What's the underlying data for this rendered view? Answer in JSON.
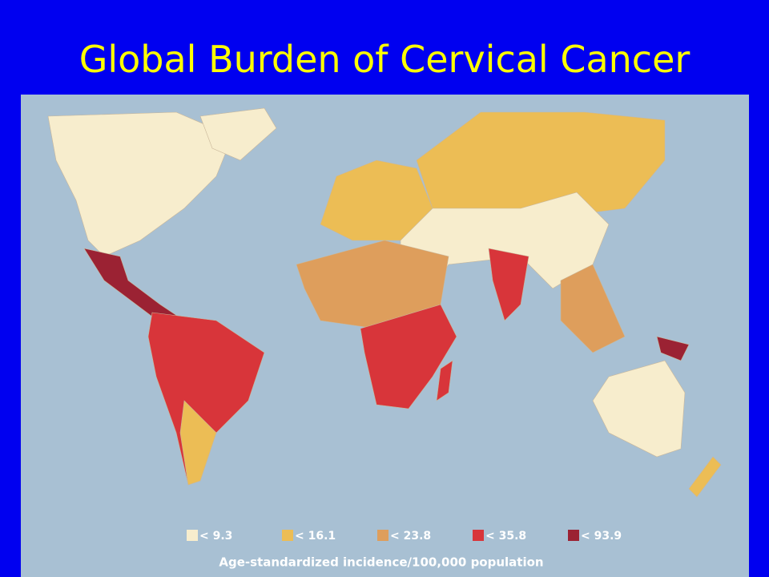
{
  "title": "Global Burden of Cervical Cancer",
  "legend": {
    "items": [
      {
        "label": "< 9.3",
        "color": "#f7edcd"
      },
      {
        "label": "< 16.1",
        "color": "#ecbd55"
      },
      {
        "label": "< 23.8",
        "color": "#de9e5c"
      },
      {
        "label": "< 35.8",
        "color": "#d8353a"
      },
      {
        "label": "< 93.9",
        "color": "#9b2233"
      }
    ],
    "caption": "Age-standardized incidence/100,000 population"
  }
}
